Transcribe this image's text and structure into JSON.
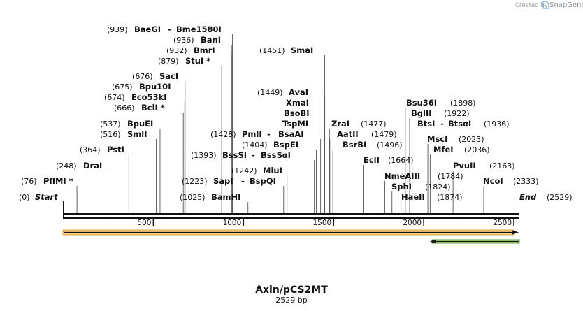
{
  "credit": {
    "prefix": "Created by",
    "brand": "SnapGene"
  },
  "plasmid": {
    "name": "Axin/pCS2MT",
    "size_label": "2529 bp",
    "length": 2529
  },
  "ends": {
    "start": {
      "label": "Start",
      "pos_label": "(0)"
    },
    "end": {
      "label": "End",
      "pos_label": "(2529)"
    }
  },
  "ruler": {
    "ticks": [
      500,
      1000,
      1500,
      2000,
      2500
    ]
  },
  "features": [
    {
      "name": "orange-feature",
      "color": "#f0b232",
      "direction": "forward"
    },
    {
      "name": "green-feature",
      "color": "#5aa02c",
      "direction": "reverse"
    }
  ],
  "sites": [
    {
      "pos_label": "(939)",
      "parts": [
        "BaeGI",
        "Bme1580I"
      ],
      "bp": 939
    },
    {
      "pos_label": "(936)",
      "parts": [
        "BanI"
      ],
      "bp": 936
    },
    {
      "pos_label": "(932)",
      "parts": [
        "BmrI"
      ],
      "bp": 932
    },
    {
      "pos_label": "(879)",
      "parts": [
        "StuI *"
      ],
      "bp": 879
    },
    {
      "pos_label": "(676)",
      "parts": [
        "SacI"
      ],
      "bp": 676
    },
    {
      "pos_label": "(675)",
      "parts": [
        "Bpu10I"
      ],
      "bp": 675
    },
    {
      "pos_label": "(674)",
      "parts": [
        "Eco53kI"
      ],
      "bp": 674
    },
    {
      "pos_label": "(666)",
      "parts": [
        "BclI *"
      ],
      "bp": 666
    },
    {
      "pos_label": "(537)",
      "parts": [
        "BpuEI"
      ],
      "bp": 537
    },
    {
      "pos_label": "(516)",
      "parts": [
        "SmlI"
      ],
      "bp": 516
    },
    {
      "pos_label": "(364)",
      "parts": [
        "PstI"
      ],
      "bp": 364
    },
    {
      "pos_label": "(248)",
      "parts": [
        "DraI"
      ],
      "bp": 248
    },
    {
      "pos_label": "(76)",
      "parts": [
        "PflMI *"
      ],
      "bp": 76
    },
    {
      "pos_label": "(1451)",
      "parts": [
        "SmaI"
      ],
      "bp": 1451
    },
    {
      "pos_label": "(1449)",
      "parts": [
        "AvaI"
      ],
      "bp": 1449
    },
    {
      "pos_label": "",
      "parts": [
        "XmaI"
      ],
      "bp": 1449
    },
    {
      "pos_label": "",
      "parts": [
        "BsoBI"
      ],
      "bp": 1449
    },
    {
      "pos_label": "",
      "parts": [
        "TspMI"
      ],
      "bp": 1449
    },
    {
      "pos_label": "(1428)",
      "parts": [
        "PmlI",
        "BsaAI"
      ],
      "bp": 1428
    },
    {
      "pos_label": "(1404)",
      "parts": [
        "BspEI"
      ],
      "bp": 1404
    },
    {
      "pos_label": "(1393)",
      "parts": [
        "BssSI",
        "BssSαI"
      ],
      "bp": 1393
    },
    {
      "pos_label": "(1242)",
      "parts": [
        "MluI"
      ],
      "bp": 1242
    },
    {
      "pos_label": "(1223)",
      "parts": [
        "SapI",
        "BspQI"
      ],
      "bp": 1223
    },
    {
      "pos_label": "(1025)",
      "parts": [
        "BamHI"
      ],
      "bp": 1025
    },
    {
      "pos_label": "(1477)",
      "parts": [
        "ZraI"
      ],
      "bp": 1477
    },
    {
      "pos_label": "(1479)",
      "parts": [
        "AatII"
      ],
      "bp": 1479
    },
    {
      "pos_label": "(1496)",
      "parts": [
        "BsrBI"
      ],
      "bp": 1496
    },
    {
      "pos_label": "(1664)",
      "parts": [
        "EclI"
      ],
      "bp": 1664
    },
    {
      "pos_label": "(1898)",
      "parts": [
        "Bsu36I"
      ],
      "bp": 1898
    },
    {
      "pos_label": "(1922)",
      "parts": [
        "BglII"
      ],
      "bp": 1922
    },
    {
      "pos_label": "(1936)",
      "parts": [
        "BtsI",
        "BtsαI"
      ],
      "bp": 1936
    },
    {
      "pos_label": "(2023)",
      "parts": [
        "MscI"
      ],
      "bp": 2023
    },
    {
      "pos_label": "(2036)",
      "parts": [
        "MfeI"
      ],
      "bp": 2036
    },
    {
      "pos_label": "(1784)",
      "parts": [
        "NmeAIII"
      ],
      "bp": 1784
    },
    {
      "pos_label": "(1824)",
      "parts": [
        "SphI"
      ],
      "bp": 1824
    },
    {
      "pos_label": "(1874)",
      "parts": [
        "HaeII"
      ],
      "bp": 1874
    },
    {
      "pos_label": "(2163)",
      "parts": [
        "PvuII"
      ],
      "bp": 2163
    },
    {
      "pos_label": "(2333)",
      "parts": [
        "NcoI"
      ],
      "bp": 2333
    }
  ]
}
